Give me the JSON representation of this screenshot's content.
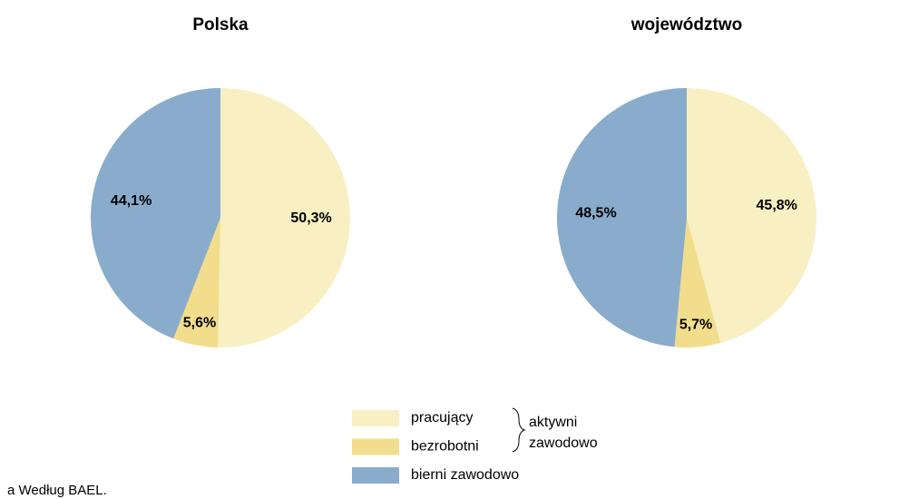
{
  "chart_data": [
    {
      "type": "pie",
      "title": "Polska",
      "categories": [
        "pracujący",
        "bezrobotni",
        "bierni zawodowo"
      ],
      "values": [
        50.3,
        5.6,
        44.1
      ],
      "value_labels": [
        "50,3%",
        "5,6%",
        "44,1%"
      ],
      "colors": [
        "#f8f0c2",
        "#f2dd8c",
        "#8aaccc"
      ]
    },
    {
      "type": "pie",
      "title": "województwo",
      "categories": [
        "pracujący",
        "bezrobotni",
        "bierni zawodowo"
      ],
      "values": [
        45.8,
        5.7,
        48.5
      ],
      "value_labels": [
        "45,8%",
        "5,7%",
        "48,5%"
      ],
      "colors": [
        "#f8f0c2",
        "#f2dd8c",
        "#8aaccc"
      ]
    }
  ],
  "legend_group": [
    "aktywni",
    "zawodowo"
  ],
  "footnote": "a Według BAEL."
}
